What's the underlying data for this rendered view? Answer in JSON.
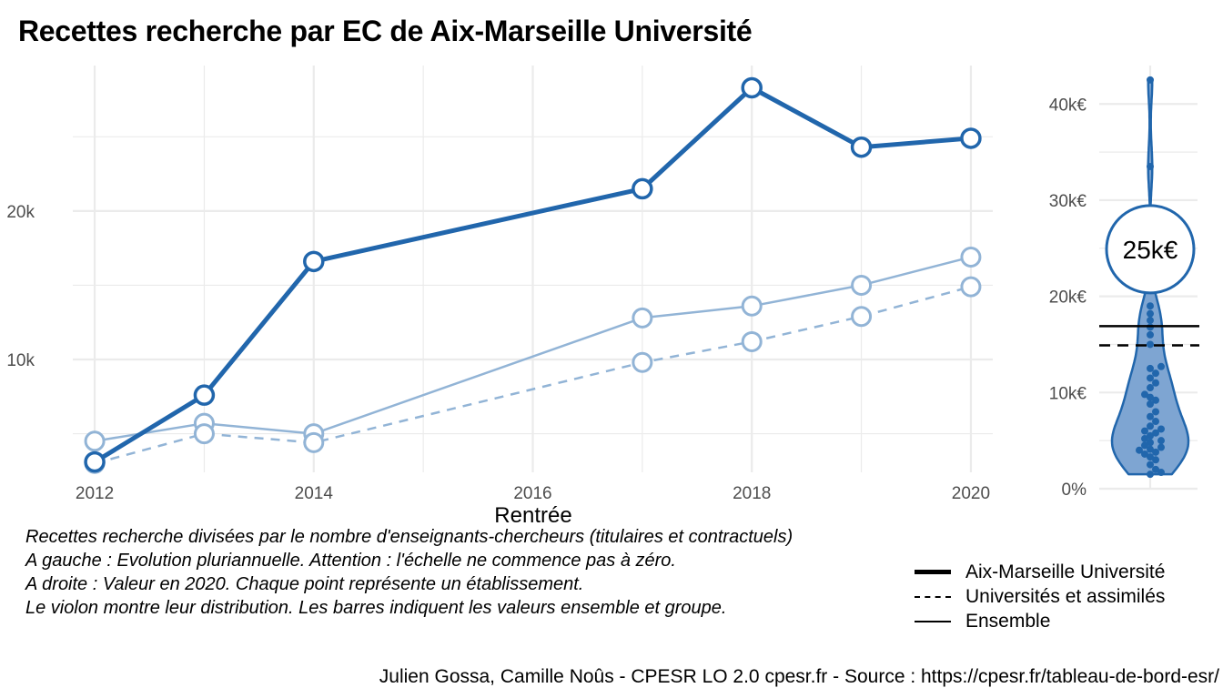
{
  "title": "Recettes recherche par EC de Aix-Marseille Université",
  "caption": [
    "Recettes recherche divisées par le nombre d'enseignants-chercheurs (titulaires et contractuels)",
    "A gauche : Evolution pluriannuelle. Attention : l'échelle ne commence pas à zéro.",
    "A droite : Valeur en 2020. Chaque point représente un établissement.",
    "Le violon montre leur distribution. Les barres indiquent les valeurs ensemble et groupe."
  ],
  "source": "Julien Gossa, Camille Noûs - CPESR LO 2.0 cpesr.fr - Source : https://cpesr.fr/tableau-de-bord-esr/",
  "legend": [
    {
      "label": "Aix-Marseille Université",
      "style": "solid-thick"
    },
    {
      "label": "Universités et assimilés",
      "style": "dashed"
    },
    {
      "label": "Ensemble",
      "style": "solid-thin"
    }
  ],
  "colors": {
    "main": "#2166ac",
    "light": "#92b4d6",
    "violin_fill": "#7ea5d2",
    "grid": "#ebebeb"
  },
  "chart_data": [
    {
      "type": "line",
      "xlabel": "Rentrée",
      "ylabel": "",
      "x_ticks": [
        2012,
        2014,
        2016,
        2018,
        2020
      ],
      "x_tick_labels": [
        "2012",
        "2014",
        "2016",
        "2018",
        "2020"
      ],
      "y_ticks": [
        10000,
        20000
      ],
      "y_tick_labels": [
        "10k",
        "20k"
      ],
      "xlim": [
        2011.8,
        2020.2
      ],
      "ylim": [
        2400,
        29800
      ],
      "series": [
        {
          "name": "Aix-Marseille Université",
          "style": "solid-thick",
          "x": [
            2012,
            2013,
            2014,
            2017,
            2018,
            2019,
            2020
          ],
          "values": [
            3100,
            7600,
            16600,
            21500,
            28300,
            24300,
            24900
          ]
        },
        {
          "name": "Ensemble",
          "style": "solid-thin",
          "x": [
            2012,
            2013,
            2014,
            2017,
            2018,
            2019,
            2020
          ],
          "values": [
            4500,
            5700,
            5000,
            12800,
            13600,
            15000,
            16900
          ]
        },
        {
          "name": "Universités et assimilés",
          "style": "dashed",
          "x": [
            2012,
            2013,
            2014,
            2017,
            2018,
            2019,
            2020
          ],
          "values": [
            3000,
            5000,
            4400,
            9800,
            11200,
            12900,
            14900
          ]
        }
      ]
    },
    {
      "type": "violin",
      "year": 2020,
      "y_ticks": [
        0,
        10000,
        20000,
        30000,
        40000
      ],
      "y_tick_labels": [
        "0%",
        "10k€",
        "20k€",
        "30k€",
        "40k€"
      ],
      "ylim": [
        0,
        44000
      ],
      "highlight": {
        "value": 24900,
        "label": "25k€"
      },
      "reference_lines": [
        {
          "name": "Ensemble",
          "value": 16900,
          "style": "solid"
        },
        {
          "name": "Universités et assimilés",
          "value": 14900,
          "style": "dashed"
        }
      ],
      "points": [
        1500,
        1700,
        2000,
        2500,
        3000,
        3300,
        3600,
        3800,
        4000,
        4100,
        4300,
        4500,
        4800,
        5000,
        5200,
        5500,
        5800,
        6000,
        6200,
        6500,
        7000,
        7500,
        8000,
        8800,
        9200,
        9500,
        9800,
        10500,
        11000,
        11500,
        12000,
        12500,
        12700,
        15000,
        16000,
        16800,
        17500,
        18200,
        19000,
        33500,
        42500
      ]
    }
  ]
}
